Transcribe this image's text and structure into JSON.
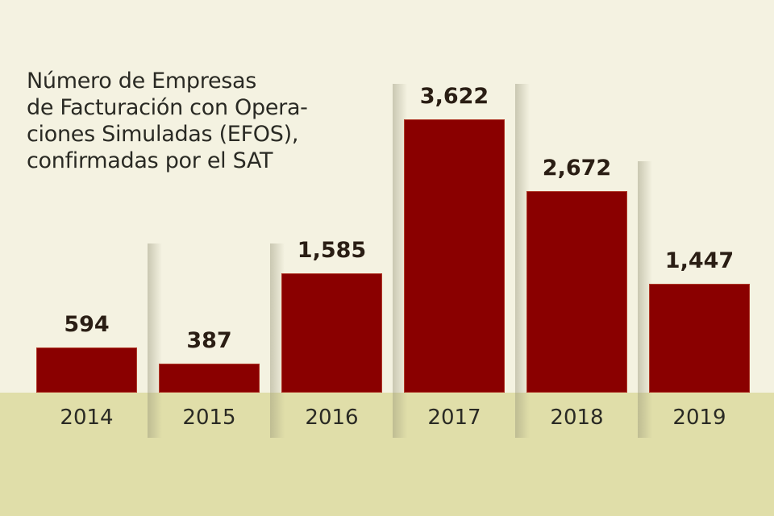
{
  "chart_data": {
    "type": "bar",
    "title": "Número de Empresas\nde Facturación con Opera-\nciones Simuladas (EFOS),\nconfirmadas por el SAT",
    "categories": [
      "2014",
      "2015",
      "2016",
      "2017",
      "2018",
      "2019"
    ],
    "values": [
      594,
      387,
      1585,
      3622,
      2672,
      1447
    ],
    "value_labels": [
      "594",
      "387",
      "1,585",
      "3,622",
      "2,672",
      "1,447"
    ],
    "ylim": [
      0,
      3622
    ],
    "grid": false,
    "colors": {
      "bar": "#8a0000",
      "background": "#f4f2e1",
      "axis_band": "#e0dea9"
    }
  }
}
